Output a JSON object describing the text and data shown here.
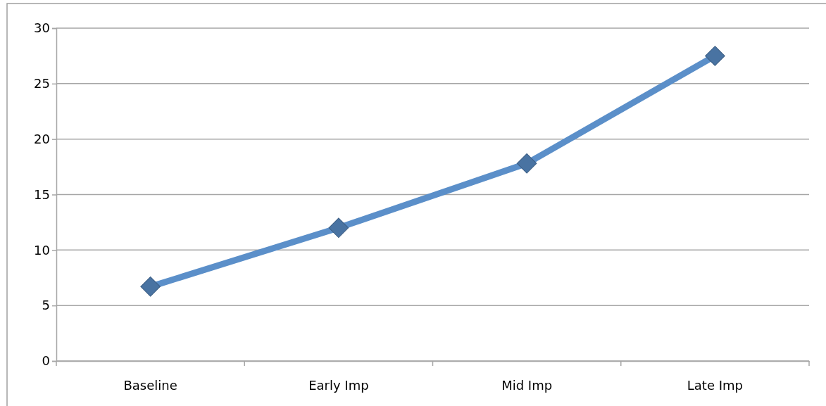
{
  "chart_data": {
    "type": "line",
    "categories": [
      "Baseline",
      "Early Imp",
      "Mid Imp",
      "Late Imp"
    ],
    "series": [
      {
        "color": "#5b8fc9",
        "values": [
          6.7,
          12.0,
          17.8,
          27.5
        ]
      }
    ],
    "ylim": [
      0,
      30
    ],
    "yticks": [
      0,
      5,
      10,
      15,
      20,
      25,
      30
    ],
    "grid": "y",
    "marker": "diamond"
  }
}
